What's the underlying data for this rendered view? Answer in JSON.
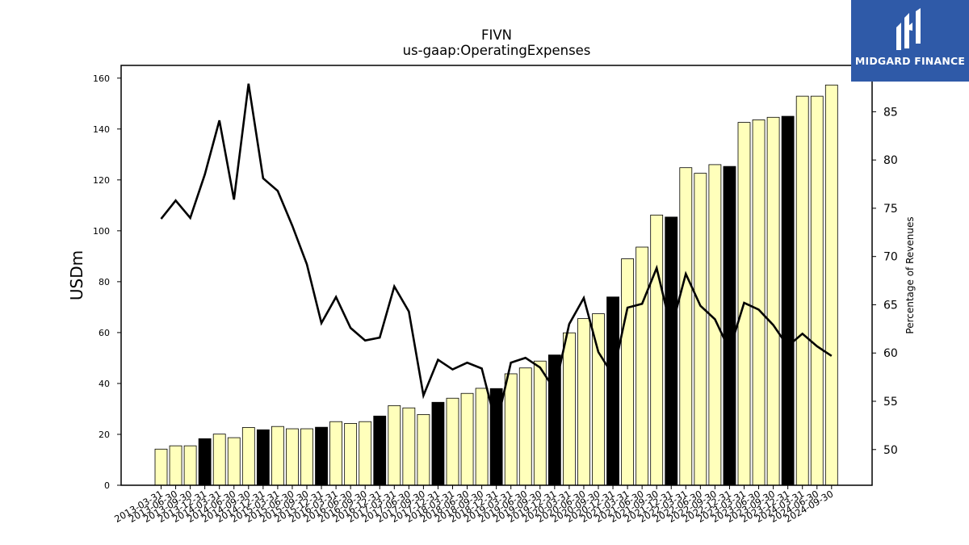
{
  "chart_data": {
    "type": "bar",
    "title": "FIVN",
    "subtitle": "us-gaap:OperatingExpenses",
    "ylabel": "USDm",
    "y2label": "Percentage of Revenues",
    "ylim": [
      0,
      165
    ],
    "y2lim": [
      46.3,
      89.8
    ],
    "yticks": [
      0,
      20,
      40,
      60,
      80,
      100,
      120,
      140,
      160
    ],
    "y2ticks": [
      50,
      55,
      60,
      65,
      70,
      75,
      80,
      85
    ],
    "categories": [
      "2013-03-31",
      "2013-06-30",
      "2013-09-30",
      "2013-12-31",
      "2014-03-31",
      "2014-06-30",
      "2014-09-30",
      "2014-12-31",
      "2015-03-31",
      "2015-06-30",
      "2015-09-30",
      "2015-12-31",
      "2016-03-31",
      "2016-06-30",
      "2016-09-30",
      "2016-12-31",
      "2017-03-31",
      "2017-06-30",
      "2017-09-30",
      "2017-12-31",
      "2018-03-31",
      "2018-06-30",
      "2018-09-30",
      "2018-12-31",
      "2019-03-31",
      "2019-06-30",
      "2019-09-30",
      "2019-12-31",
      "2020-03-31",
      "2020-06-30",
      "2020-09-30",
      "2020-12-31",
      "2021-03-31",
      "2021-06-30",
      "2021-09-30",
      "2021-12-31",
      "2022-03-31",
      "2022-06-30",
      "2022-09-30",
      "2022-12-31",
      "2023-03-31",
      "2023-06-30",
      "2023-09-30",
      "2023-12-31",
      "2024-03-31",
      "2024-06-30",
      "2024-09-30"
    ],
    "series": [
      {
        "type": "bar",
        "values": [
          14.2,
          15.5,
          15.5,
          18.3,
          20.1,
          18.7,
          22.7,
          21.8,
          23.1,
          22.2,
          22.2,
          22.8,
          25.0,
          24.3,
          25.0,
          27.2,
          31.3,
          30.4,
          27.8,
          32.6,
          34.2,
          36.1,
          38.1,
          38.0,
          43.8,
          46.1,
          48.8,
          51.2,
          59.9,
          65.5,
          67.4,
          74.0,
          89.0,
          93.6,
          106.2,
          105.4,
          124.8,
          122.6,
          126.0,
          125.3,
          142.6,
          143.6,
          144.6,
          145.0,
          152.9,
          152.9,
          157.3
        ],
        "highlight_quarter": "12-31",
        "bar_color": "#ffffbb",
        "highlight_color": "#000000"
      },
      {
        "type": "line",
        "axis": "right",
        "values": [
          73.9,
          75.8,
          74.0,
          78.5,
          84.1,
          75.9,
          87.9,
          78.1,
          76.8,
          73.2,
          69.2,
          63.1,
          65.8,
          62.6,
          61.3,
          61.6,
          66.9,
          64.3,
          55.6,
          59.3,
          58.3,
          59.0,
          58.4,
          52.5,
          59.0,
          59.5,
          58.5,
          56.2,
          63.0,
          65.7,
          60.1,
          57.7,
          64.7,
          65.1,
          68.8,
          62.5,
          68.2,
          64.9,
          63.5,
          60.3,
          65.2,
          64.5,
          62.9,
          60.7,
          62.0,
          60.7,
          59.7
        ],
        "color": "#000000"
      }
    ],
    "grid": false,
    "legend": "none"
  },
  "logo": {
    "brand": "MIDGARD FINANCE",
    "color": "#2f5aa8"
  }
}
